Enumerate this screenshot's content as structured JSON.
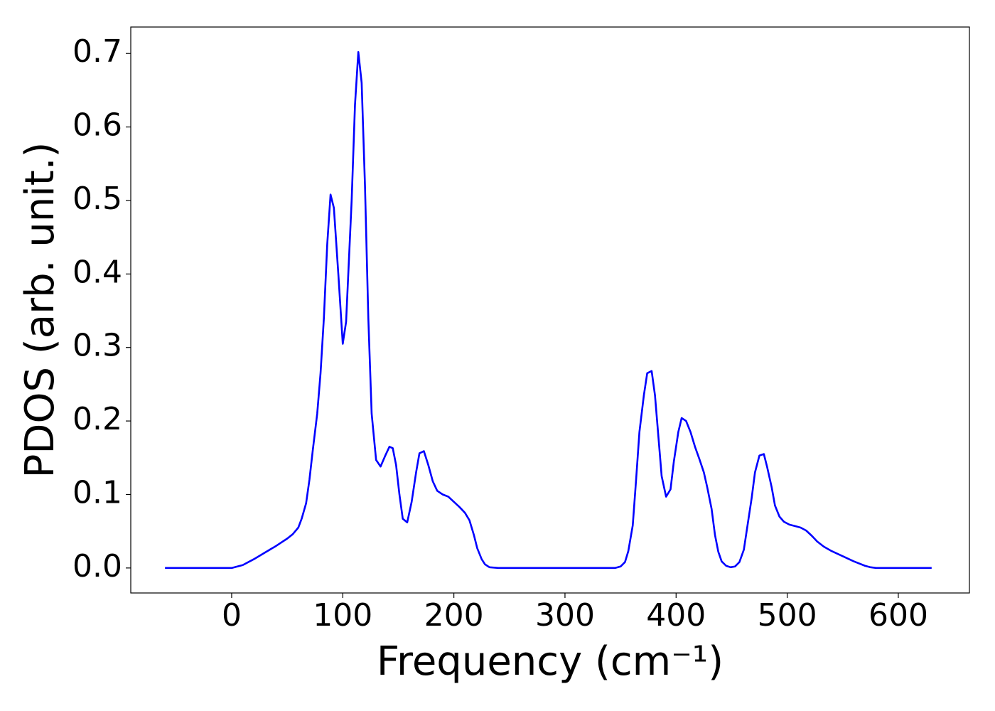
{
  "chart_data": {
    "type": "line",
    "xlabel": "Frequency (cm⁻¹)",
    "ylabel": "PDOS (arb. unit.)",
    "x": [
      -60,
      0,
      10,
      20,
      30,
      40,
      50,
      55,
      60,
      63,
      67,
      70,
      73,
      77,
      80,
      83,
      86,
      89,
      92,
      96,
      100,
      103,
      108,
      111,
      114,
      117,
      120,
      123,
      126,
      130,
      134,
      138,
      142,
      145,
      148,
      151,
      154,
      158,
      162,
      166,
      169,
      173,
      177,
      181,
      185,
      190,
      195,
      200,
      205,
      210,
      214,
      218,
      221,
      225,
      228,
      232,
      240,
      345,
      350,
      354,
      357,
      361,
      364,
      367,
      371,
      374,
      378,
      381,
      384,
      387,
      391,
      395,
      398,
      402,
      405,
      409,
      413,
      417,
      421,
      425,
      428,
      432,
      435,
      438,
      441,
      445,
      449,
      453,
      457,
      461,
      464,
      468,
      471,
      475,
      479,
      482,
      486,
      489,
      493,
      497,
      502,
      507,
      512,
      517,
      522,
      527,
      533,
      540,
      550,
      560,
      570,
      575,
      580,
      630
    ],
    "series": [
      {
        "color": "#0000ff",
        "values": [
          0,
          0,
          0.004,
          0.012,
          0.021,
          0.03,
          0.04,
          0.046,
          0.055,
          0.067,
          0.088,
          0.12,
          0.16,
          0.21,
          0.265,
          0.34,
          0.44,
          0.508,
          0.49,
          0.4,
          0.305,
          0.335,
          0.5,
          0.63,
          0.702,
          0.66,
          0.52,
          0.34,
          0.21,
          0.147,
          0.138,
          0.152,
          0.165,
          0.163,
          0.14,
          0.1,
          0.067,
          0.062,
          0.09,
          0.13,
          0.156,
          0.159,
          0.14,
          0.118,
          0.105,
          0.1,
          0.097,
          0.09,
          0.083,
          0.075,
          0.065,
          0.045,
          0.027,
          0.012,
          0.005,
          0.001,
          0,
          0,
          0.002,
          0.008,
          0.023,
          0.058,
          0.12,
          0.185,
          0.235,
          0.265,
          0.268,
          0.235,
          0.18,
          0.125,
          0.097,
          0.107,
          0.145,
          0.185,
          0.204,
          0.2,
          0.185,
          0.165,
          0.148,
          0.13,
          0.11,
          0.08,
          0.045,
          0.022,
          0.009,
          0.003,
          0.001,
          0.002,
          0.008,
          0.025,
          0.055,
          0.095,
          0.13,
          0.153,
          0.155,
          0.137,
          0.11,
          0.085,
          0.07,
          0.063,
          0.059,
          0.057,
          0.055,
          0.051,
          0.044,
          0.036,
          0.029,
          0.023,
          0.016,
          0.009,
          0.003,
          0.001,
          0,
          0
        ]
      }
    ],
    "xlim": [
      -90.8,
      664
    ],
    "ylim": [
      -0.034,
      0.736
    ],
    "xticks": [
      0,
      100,
      200,
      300,
      400,
      500,
      600
    ],
    "yticks": [
      {
        "value": 0,
        "label": "0.0"
      },
      0.1,
      0.2,
      0.3,
      0.4,
      0.5,
      0.6,
      0.7
    ]
  }
}
